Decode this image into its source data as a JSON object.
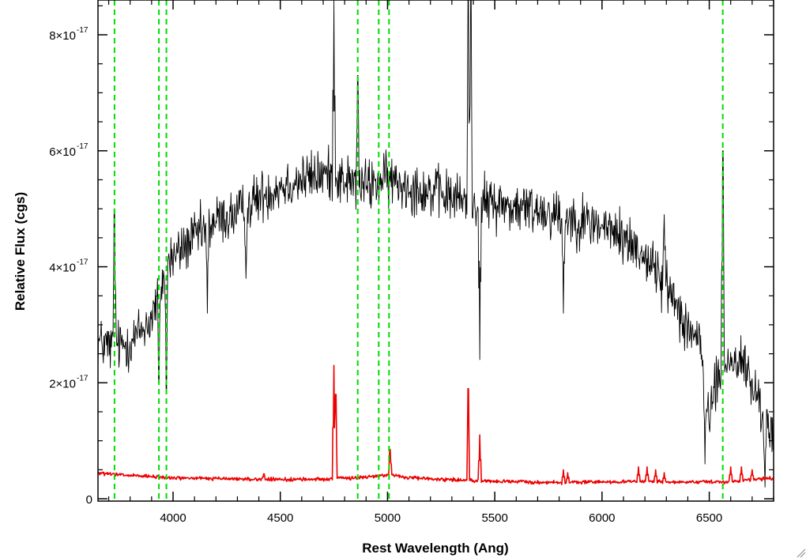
{
  "chart_data": {
    "type": "line",
    "title": "",
    "xlabel": "Rest Wavelength (Ang)",
    "ylabel": "Relative Flux (cgs)",
    "xlim": [
      3650,
      6800
    ],
    "ylim": [
      -4e-19,
      8.6e-17
    ],
    "x_ticks": [
      {
        "value": 4000,
        "label": "4000"
      },
      {
        "value": 4500,
        "label": "4500"
      },
      {
        "value": 5000,
        "label": "5000"
      },
      {
        "value": 5500,
        "label": "5500"
      },
      {
        "value": 6000,
        "label": "6000"
      },
      {
        "value": 6500,
        "label": "6500"
      }
    ],
    "y_ticks": [
      {
        "value": 0,
        "mantissa": "0",
        "exponent": ""
      },
      {
        "value": 2e-17,
        "mantissa": "2×10",
        "exponent": "-17"
      },
      {
        "value": 4e-17,
        "mantissa": "4×10",
        "exponent": "-17"
      },
      {
        "value": 6e-17,
        "mantissa": "6×10",
        "exponent": "-17"
      },
      {
        "value": 8e-17,
        "mantissa": "8×10",
        "exponent": "-17"
      }
    ],
    "reference_lines": {
      "color": "#00dd00",
      "style": "dashed",
      "x": [
        3727,
        3934,
        3969,
        4861,
        4959,
        5007,
        6563
      ]
    },
    "series": [
      {
        "color": "#000000",
        "envelope": [
          [
            3650,
            2.7
          ],
          [
            3720,
            2.6
          ],
          [
            3800,
            2.7
          ],
          [
            3900,
            3.1
          ],
          [
            3980,
            4.1
          ],
          [
            4100,
            4.5
          ],
          [
            4200,
            4.8
          ],
          [
            4300,
            4.9
          ],
          [
            4400,
            5.2
          ],
          [
            4500,
            5.4
          ],
          [
            4600,
            5.5
          ],
          [
            4700,
            5.6
          ],
          [
            4800,
            5.5
          ],
          [
            4900,
            5.4
          ],
          [
            5000,
            5.5
          ],
          [
            5100,
            5.4
          ],
          [
            5200,
            5.3
          ],
          [
            5300,
            5.2
          ],
          [
            5400,
            5.1
          ],
          [
            5500,
            5.1
          ],
          [
            5600,
            5.0
          ],
          [
            5700,
            5.0
          ],
          [
            5800,
            4.9
          ],
          [
            5900,
            4.8
          ],
          [
            6000,
            4.7
          ],
          [
            6100,
            4.5
          ],
          [
            6200,
            4.2
          ],
          [
            6300,
            3.7
          ],
          [
            6400,
            3.0
          ],
          [
            6450,
            2.7
          ],
          [
            6500,
            1.5
          ],
          [
            6560,
            2.3
          ],
          [
            6650,
            2.4
          ],
          [
            6800,
            1.0
          ]
        ],
        "noise": 0.45,
        "features": [
          [
            3727,
            5.0
          ],
          [
            3934,
            2.0
          ],
          [
            3969,
            1.9
          ],
          [
            4160,
            3.2
          ],
          [
            4340,
            3.8
          ],
          [
            4750,
            8.6
          ],
          [
            4861,
            7.3
          ],
          [
            5376,
            8.6
          ],
          [
            5388,
            8.6
          ],
          [
            5430,
            2.4
          ],
          [
            5820,
            3.2
          ],
          [
            6290,
            4.9
          ],
          [
            6480,
            0.6
          ],
          [
            6563,
            6.0
          ],
          [
            6760,
            0.2
          ]
        ]
      },
      {
        "color": "#ee0000",
        "envelope": [
          [
            3650,
            0.44
          ],
          [
            3800,
            0.4
          ],
          [
            4000,
            0.36
          ],
          [
            4500,
            0.33
          ],
          [
            4700,
            0.34
          ],
          [
            4900,
            0.37
          ],
          [
            5000,
            0.42
          ],
          [
            5100,
            0.36
          ],
          [
            5500,
            0.3
          ],
          [
            5800,
            0.28
          ],
          [
            6000,
            0.29
          ],
          [
            6200,
            0.3
          ],
          [
            6400,
            0.28
          ],
          [
            6600,
            0.3
          ],
          [
            6800,
            0.36
          ]
        ],
        "noise": 0.03,
        "features": [
          [
            4423,
            0.43
          ],
          [
            4750,
            2.3
          ],
          [
            4759,
            1.8
          ],
          [
            5012,
            0.85
          ],
          [
            5376,
            1.9
          ],
          [
            5430,
            1.1
          ],
          [
            5820,
            0.5
          ],
          [
            5840,
            0.45
          ],
          [
            6170,
            0.55
          ],
          [
            6210,
            0.55
          ],
          [
            6250,
            0.5
          ],
          [
            6290,
            0.45
          ],
          [
            6600,
            0.55
          ],
          [
            6650,
            0.55
          ],
          [
            6700,
            0.5
          ]
        ]
      }
    ]
  }
}
